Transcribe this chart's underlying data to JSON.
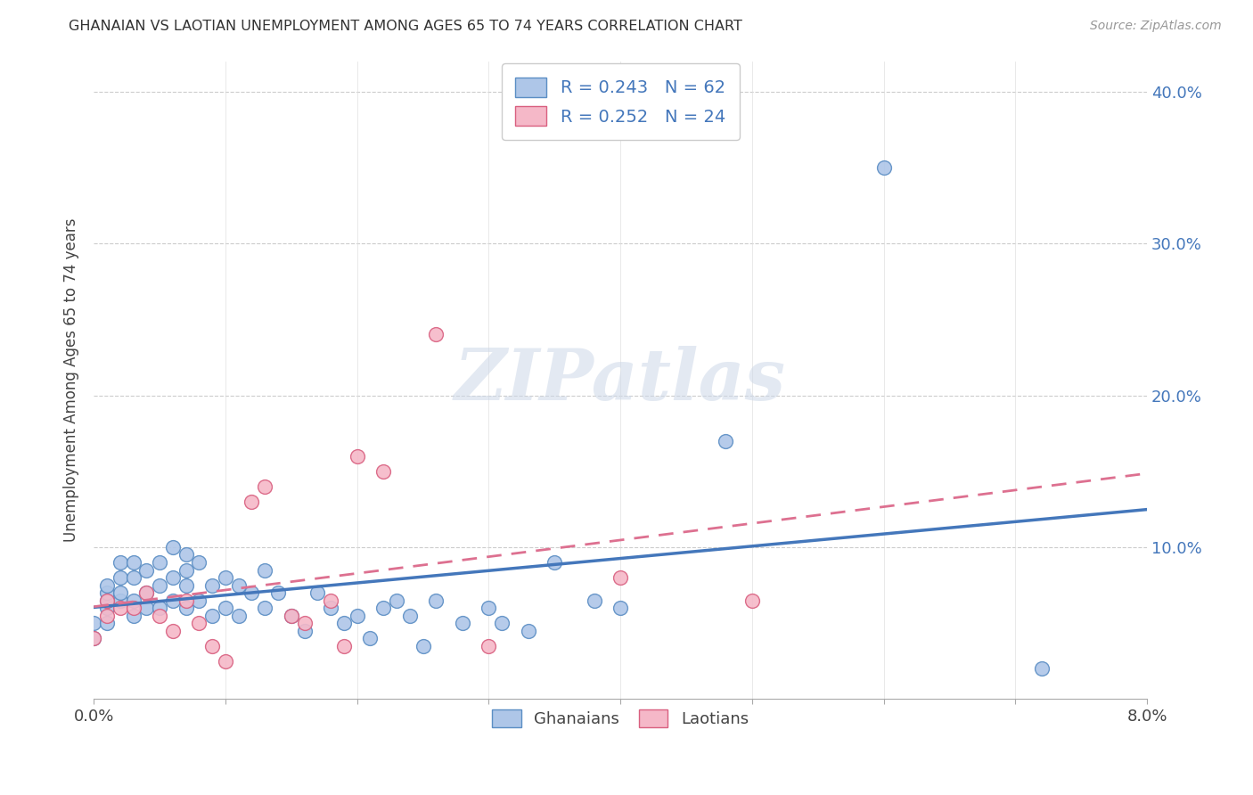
{
  "title": "GHANAIAN VS LAOTIAN UNEMPLOYMENT AMONG AGES 65 TO 74 YEARS CORRELATION CHART",
  "source": "Source: ZipAtlas.com",
  "ylabel": "Unemployment Among Ages 65 to 74 years",
  "xlim": [
    0.0,
    0.08
  ],
  "ylim": [
    0.0,
    0.42
  ],
  "ytick_positions": [
    0.0,
    0.1,
    0.2,
    0.3,
    0.4
  ],
  "ytick_labels": [
    "",
    "10.0%",
    "20.0%",
    "30.0%",
    "40.0%"
  ],
  "xtick_positions": [
    0.0,
    0.01,
    0.02,
    0.03,
    0.04,
    0.05,
    0.06,
    0.07,
    0.08
  ],
  "xtick_labels": [
    "0.0%",
    "",
    "",
    "",
    "",
    "",
    "",
    "",
    "8.0%"
  ],
  "background_color": "#ffffff",
  "watermark_text": "ZIPatlas",
  "ghanaian_face_color": "#aec6e8",
  "ghanaian_edge_color": "#5b8ec4",
  "laotian_face_color": "#f5b8c8",
  "laotian_edge_color": "#d96080",
  "trend_ghana_color": "#4477bb",
  "trend_laotian_color": "#dd7090",
  "R_ghana": 0.243,
  "N_ghana": 62,
  "R_laotian": 0.252,
  "N_laotian": 24,
  "ghana_x": [
    0.0,
    0.0,
    0.001,
    0.001,
    0.001,
    0.001,
    0.001,
    0.002,
    0.002,
    0.002,
    0.002,
    0.003,
    0.003,
    0.003,
    0.003,
    0.004,
    0.004,
    0.004,
    0.005,
    0.005,
    0.005,
    0.006,
    0.006,
    0.006,
    0.007,
    0.007,
    0.007,
    0.007,
    0.008,
    0.008,
    0.009,
    0.009,
    0.01,
    0.01,
    0.011,
    0.011,
    0.012,
    0.013,
    0.013,
    0.014,
    0.015,
    0.016,
    0.017,
    0.018,
    0.019,
    0.02,
    0.021,
    0.022,
    0.023,
    0.024,
    0.025,
    0.026,
    0.028,
    0.03,
    0.031,
    0.033,
    0.035,
    0.038,
    0.04,
    0.048,
    0.06,
    0.072
  ],
  "ghana_y": [
    0.05,
    0.04,
    0.06,
    0.065,
    0.07,
    0.075,
    0.05,
    0.065,
    0.07,
    0.08,
    0.09,
    0.055,
    0.065,
    0.08,
    0.09,
    0.06,
    0.07,
    0.085,
    0.06,
    0.075,
    0.09,
    0.065,
    0.08,
    0.1,
    0.06,
    0.075,
    0.085,
    0.095,
    0.065,
    0.09,
    0.055,
    0.075,
    0.06,
    0.08,
    0.055,
    0.075,
    0.07,
    0.06,
    0.085,
    0.07,
    0.055,
    0.045,
    0.07,
    0.06,
    0.05,
    0.055,
    0.04,
    0.06,
    0.065,
    0.055,
    0.035,
    0.065,
    0.05,
    0.06,
    0.05,
    0.045,
    0.09,
    0.065,
    0.06,
    0.17,
    0.35,
    0.02
  ],
  "laotian_x": [
    0.0,
    0.001,
    0.001,
    0.002,
    0.003,
    0.004,
    0.005,
    0.006,
    0.007,
    0.008,
    0.009,
    0.01,
    0.012,
    0.013,
    0.015,
    0.016,
    0.018,
    0.019,
    0.02,
    0.022,
    0.026,
    0.03,
    0.04,
    0.05
  ],
  "laotian_y": [
    0.04,
    0.055,
    0.065,
    0.06,
    0.06,
    0.07,
    0.055,
    0.045,
    0.065,
    0.05,
    0.035,
    0.025,
    0.13,
    0.14,
    0.055,
    0.05,
    0.065,
    0.035,
    0.16,
    0.15,
    0.24,
    0.035,
    0.08,
    0.065
  ]
}
